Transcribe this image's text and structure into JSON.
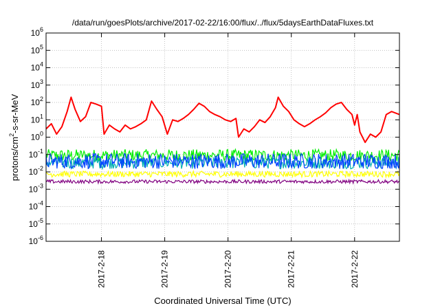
{
  "chart_data": {
    "type": "line",
    "title": "/data/run/goesPlots/archive/2017-02-22/16:00/flux/../flux/5daysEarthDataFluxes.txt",
    "xlabel": "Coordinated Universal Time (UTC)",
    "ylabel": {
      "prefix": "protons/cm",
      "sup": "2",
      "suffix": "-s-sr-MeV"
    },
    "yscale": "log",
    "ylim": [
      1e-06,
      1000000.0
    ],
    "xlim": [
      "2017-02-17 03:00",
      "2017-02-22 17:00"
    ],
    "grid": true,
    "y_ticks": [
      {
        "base": "10",
        "exp": "-6",
        "value": 1e-06
      },
      {
        "base": "10",
        "exp": "-5",
        "value": 1e-05
      },
      {
        "base": "10",
        "exp": "-4",
        "value": 0.0001
      },
      {
        "base": "10",
        "exp": "-3",
        "value": 0.001
      },
      {
        "base": "10",
        "exp": "-2",
        "value": 0.01
      },
      {
        "base": "10",
        "exp": "-1",
        "value": 0.1
      },
      {
        "base": "10",
        "exp": "0",
        "value": 1
      },
      {
        "base": "10",
        "exp": "1",
        "value": 10
      },
      {
        "base": "10",
        "exp": "2",
        "value": 100
      },
      {
        "base": "10",
        "exp": "3",
        "value": 1000
      },
      {
        "base": "10",
        "exp": "4",
        "value": 10000
      },
      {
        "base": "10",
        "exp": "5",
        "value": 100000
      },
      {
        "base": "10",
        "exp": "6",
        "value": 1000000
      }
    ],
    "x_ticks": [
      {
        "label": "2017-2-18",
        "value": "2017-02-18 00:00"
      },
      {
        "label": "2017-2-19",
        "value": "2017-02-19 00:00"
      },
      {
        "label": "2017-2-20",
        "value": "2017-02-20 00:00"
      },
      {
        "label": "2017-2-21",
        "value": "2017-02-21 00:00"
      },
      {
        "label": "2017-2-22",
        "value": "2017-02-22 00:00"
      }
    ],
    "series": [
      {
        "color": "#ff0000",
        "points": [
          [
            "2017-02-17 03:00",
            3
          ],
          [
            "2017-02-17 05:00",
            6
          ],
          [
            "2017-02-17 07:00",
            1.5
          ],
          [
            "2017-02-17 09:00",
            4
          ],
          [
            "2017-02-17 11:00",
            30
          ],
          [
            "2017-02-17 12:30",
            200
          ],
          [
            "2017-02-17 14:00",
            40
          ],
          [
            "2017-02-17 16:00",
            8
          ],
          [
            "2017-02-17 18:00",
            15
          ],
          [
            "2017-02-17 20:00",
            100
          ],
          [
            "2017-02-17 22:00",
            80
          ],
          [
            "2017-02-18 00:00",
            60
          ],
          [
            "2017-02-18 01:00",
            1.5
          ],
          [
            "2017-02-18 03:00",
            5
          ],
          [
            "2017-02-18 05:00",
            3
          ],
          [
            "2017-02-18 07:00",
            2
          ],
          [
            "2017-02-18 09:00",
            5
          ],
          [
            "2017-02-18 11:00",
            3
          ],
          [
            "2017-02-18 13:00",
            4
          ],
          [
            "2017-02-18 15:00",
            6
          ],
          [
            "2017-02-18 17:00",
            10
          ],
          [
            "2017-02-18 19:00",
            120
          ],
          [
            "2017-02-18 21:00",
            40
          ],
          [
            "2017-02-18 23:00",
            15
          ],
          [
            "2017-02-19 01:00",
            1.5
          ],
          [
            "2017-02-19 03:00",
            10
          ],
          [
            "2017-02-19 05:00",
            8
          ],
          [
            "2017-02-19 07:00",
            12
          ],
          [
            "2017-02-19 09:00",
            20
          ],
          [
            "2017-02-19 11:00",
            40
          ],
          [
            "2017-02-19 13:00",
            90
          ],
          [
            "2017-02-19 15:00",
            60
          ],
          [
            "2017-02-19 17:00",
            30
          ],
          [
            "2017-02-19 19:00",
            20
          ],
          [
            "2017-02-19 21:00",
            15
          ],
          [
            "2017-02-19 23:00",
            10
          ],
          [
            "2017-02-20 01:00",
            8
          ],
          [
            "2017-02-20 03:00",
            12
          ],
          [
            "2017-02-20 04:00",
            1
          ],
          [
            "2017-02-20 06:00",
            3
          ],
          [
            "2017-02-20 08:00",
            2
          ],
          [
            "2017-02-20 10:00",
            4
          ],
          [
            "2017-02-20 12:00",
            10
          ],
          [
            "2017-02-20 14:00",
            7
          ],
          [
            "2017-02-20 16:00",
            15
          ],
          [
            "2017-02-20 18:00",
            50
          ],
          [
            "2017-02-20 19:00",
            200
          ],
          [
            "2017-02-20 21:00",
            60
          ],
          [
            "2017-02-20 23:00",
            30
          ],
          [
            "2017-02-21 01:00",
            10
          ],
          [
            "2017-02-21 03:00",
            6
          ],
          [
            "2017-02-21 05:00",
            4
          ],
          [
            "2017-02-21 07:00",
            6
          ],
          [
            "2017-02-21 09:00",
            10
          ],
          [
            "2017-02-21 11:00",
            15
          ],
          [
            "2017-02-21 13:00",
            25
          ],
          [
            "2017-02-21 15:00",
            50
          ],
          [
            "2017-02-21 17:00",
            80
          ],
          [
            "2017-02-21 19:00",
            100
          ],
          [
            "2017-02-21 21:00",
            40
          ],
          [
            "2017-02-21 23:00",
            20
          ],
          [
            "2017-02-22 00:00",
            5
          ],
          [
            "2017-02-22 01:00",
            20
          ],
          [
            "2017-02-22 02:00",
            2
          ],
          [
            "2017-02-22 04:00",
            0.5
          ],
          [
            "2017-02-22 06:00",
            1.5
          ],
          [
            "2017-02-22 08:00",
            1
          ],
          [
            "2017-02-22 10:00",
            2
          ],
          [
            "2017-02-22 12:00",
            20
          ],
          [
            "2017-02-22 14:00",
            30
          ],
          [
            "2017-02-22 17:00",
            20
          ]
        ]
      },
      {
        "color": "#00ee00",
        "level": 0.09,
        "spread_low": 0.04,
        "spread_high": 0.2
      },
      {
        "color": "#00b0b0",
        "level": 0.035,
        "spread_low": 0.015,
        "spread_high": 0.07
      },
      {
        "color": "#0040ff",
        "level": 0.04,
        "spread_low": 0.015,
        "spread_high": 0.12
      },
      {
        "color": "#ffff00",
        "level": 0.0075,
        "spread_low": 0.005,
        "spread_high": 0.011
      },
      {
        "color": "#800080",
        "level": 0.0027,
        "spread_low": 0.0022,
        "spread_high": 0.0035
      }
    ]
  }
}
